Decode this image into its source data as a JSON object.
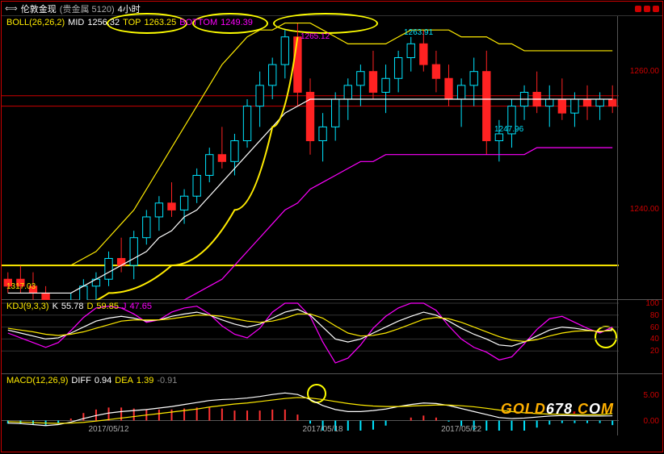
{
  "title": {
    "prefix": "⟺",
    "name": "伦敦金现",
    "group": "(贵金属 5120)",
    "tf": "4小时"
  },
  "main": {
    "indicator": {
      "name": "BOLL(26,26,2)",
      "mid_label": "MID",
      "mid_val": "1256.32",
      "top_label": "TOP",
      "top_val": "1263.25",
      "bot_label": "BOTTOM",
      "bot_val": "1249.39"
    },
    "val_labels": {
      "v1265": "1265.12",
      "v1263": "1263.91",
      "v1247": "1247.96",
      "v1317": "1317.03"
    },
    "colors": {
      "boll": "#ffeb00",
      "mid": "#ffffff",
      "top": "#ffeb00",
      "bot": "#ff00ff",
      "candle_up": "#00e5ff",
      "candle_dn": "#ff2222",
      "grid": "#555",
      "hline": "#c00"
    },
    "ylim": [
      1227,
      1268
    ],
    "yticks": [
      1240,
      1260
    ],
    "hlines": [
      1255,
      1256.5,
      1232
    ],
    "candles": [
      [
        0,
        1229,
        1231,
        1228,
        1230,
        -1
      ],
      [
        1,
        1230,
        1232,
        1228,
        1229,
        -1
      ],
      [
        2,
        1229,
        1231,
        1227,
        1228,
        -1
      ],
      [
        3,
        1228,
        1229,
        1224,
        1225,
        -1
      ],
      [
        4,
        1225,
        1227,
        1222,
        1223,
        -1
      ],
      [
        5,
        1223,
        1228,
        1222,
        1226,
        1
      ],
      [
        6,
        1226,
        1230,
        1225,
        1229,
        1
      ],
      [
        7,
        1229,
        1231,
        1227,
        1230,
        1
      ],
      [
        8,
        1230,
        1234,
        1229,
        1233,
        1
      ],
      [
        9,
        1233,
        1236,
        1231,
        1232,
        -1
      ],
      [
        10,
        1232,
        1237,
        1230,
        1236,
        1
      ],
      [
        11,
        1236,
        1240,
        1235,
        1239,
        1
      ],
      [
        12,
        1239,
        1242,
        1237,
        1241,
        1
      ],
      [
        13,
        1241,
        1244,
        1239,
        1240,
        -1
      ],
      [
        14,
        1240,
        1243,
        1238,
        1242,
        1
      ],
      [
        15,
        1242,
        1246,
        1241,
        1245,
        1
      ],
      [
        16,
        1245,
        1249,
        1244,
        1248,
        1
      ],
      [
        17,
        1248,
        1252,
        1246,
        1247,
        -1
      ],
      [
        18,
        1247,
        1251,
        1245,
        1250,
        1
      ],
      [
        19,
        1250,
        1256,
        1249,
        1255,
        1
      ],
      [
        20,
        1255,
        1260,
        1252,
        1258,
        1
      ],
      [
        21,
        1258,
        1262,
        1256,
        1261,
        1
      ],
      [
        22,
        1261,
        1266,
        1259,
        1265,
        1
      ],
      [
        23,
        1265,
        1267,
        1255,
        1257,
        -1
      ],
      [
        24,
        1257,
        1259,
        1248,
        1250,
        -1
      ],
      [
        25,
        1250,
        1254,
        1247,
        1252,
        1
      ],
      [
        26,
        1252,
        1257,
        1250,
        1256,
        1
      ],
      [
        27,
        1256,
        1259,
        1253,
        1258,
        1
      ],
      [
        28,
        1258,
        1261,
        1255,
        1260,
        1
      ],
      [
        29,
        1260,
        1263,
        1256,
        1257,
        -1
      ],
      [
        30,
        1257,
        1261,
        1254,
        1259,
        1
      ],
      [
        31,
        1259,
        1263,
        1257,
        1262,
        1
      ],
      [
        32,
        1262,
        1265,
        1260,
        1264,
        1
      ],
      [
        33,
        1264,
        1266,
        1260,
        1261,
        -1
      ],
      [
        34,
        1261,
        1263,
        1257,
        1259,
        -1
      ],
      [
        35,
        1259,
        1261,
        1255,
        1256,
        -1
      ],
      [
        36,
        1256,
        1259,
        1252,
        1258,
        1
      ],
      [
        37,
        1258,
        1262,
        1255,
        1260,
        1
      ],
      [
        38,
        1260,
        1263,
        1248,
        1250,
        -1
      ],
      [
        39,
        1250,
        1253,
        1247,
        1251,
        1
      ],
      [
        40,
        1251,
        1256,
        1249,
        1255,
        1
      ],
      [
        41,
        1255,
        1258,
        1253,
        1257,
        1
      ],
      [
        42,
        1257,
        1260,
        1254,
        1255,
        -1
      ],
      [
        43,
        1255,
        1258,
        1252,
        1256,
        1
      ],
      [
        44,
        1256,
        1259,
        1253,
        1254,
        -1
      ],
      [
        45,
        1254,
        1257,
        1252,
        1256,
        1
      ],
      [
        46,
        1256,
        1258,
        1253,
        1255,
        -1
      ],
      [
        47,
        1255,
        1257,
        1253,
        1256,
        1
      ],
      [
        48,
        1256,
        1258,
        1254,
        1255,
        -1
      ]
    ],
    "boll_mid": [
      1228,
      1228,
      1228,
      1228,
      1228,
      1228,
      1229,
      1230,
      1231,
      1232,
      1233,
      1234,
      1236,
      1237,
      1239,
      1240,
      1242,
      1244,
      1246,
      1248,
      1250,
      1252,
      1254,
      1255,
      1256,
      1256,
      1256,
      1256,
      1256,
      1256,
      1256,
      1256,
      1256,
      1256,
      1256,
      1256,
      1256,
      1256,
      1256,
      1256,
      1256,
      1256,
      1256,
      1256,
      1256,
      1256,
      1256,
      1256,
      1256
    ],
    "boll_top": [
      1232,
      1232,
      1232,
      1232,
      1232,
      1232,
      1233,
      1234,
      1236,
      1238,
      1240,
      1243,
      1246,
      1249,
      1252,
      1255,
      1258,
      1261,
      1263,
      1265,
      1266,
      1266,
      1267,
      1267,
      1267,
      1266,
      1265,
      1264,
      1264,
      1264,
      1264,
      1265,
      1266,
      1266,
      1266,
      1266,
      1265,
      1265,
      1265,
      1264,
      1264,
      1263,
      1263,
      1263,
      1263,
      1263,
      1263,
      1263,
      1263
    ],
    "boll_bot": [
      1224,
      1224,
      1224,
      1223,
      1223,
      1223,
      1223,
      1223,
      1224,
      1224,
      1224,
      1225,
      1225,
      1226,
      1227,
      1228,
      1229,
      1230,
      1232,
      1234,
      1236,
      1238,
      1240,
      1241,
      1243,
      1244,
      1245,
      1246,
      1247,
      1247,
      1248,
      1248,
      1248,
      1248,
      1248,
      1248,
      1248,
      1248,
      1248,
      1248,
      1248,
      1248,
      1249,
      1249,
      1249,
      1249,
      1249,
      1249,
      1249
    ],
    "yellow_curve": [
      [
        3,
        1225
      ],
      [
        8,
        1228
      ],
      [
        13,
        1232
      ],
      [
        18,
        1240
      ],
      [
        21,
        1252
      ],
      [
        23,
        1265
      ]
    ]
  },
  "kdj": {
    "hdr": {
      "name": "KDJ(9,3,3)",
      "k_label": "K",
      "k_val": "55.78",
      "d_label": "D",
      "d_val": "59.85",
      "j_label": "J",
      "j_val": "47.65"
    },
    "colors": {
      "k": "#ffffff",
      "d": "#ffeb00",
      "j": "#ff00ff"
    },
    "ylim": [
      0,
      100
    ],
    "yticks": [
      20,
      40,
      60,
      80,
      100
    ],
    "k": [
      55,
      50,
      45,
      40,
      42,
      50,
      60,
      70,
      75,
      78,
      75,
      70,
      72,
      78,
      82,
      85,
      80,
      72,
      65,
      60,
      65,
      75,
      85,
      90,
      80,
      60,
      40,
      35,
      40,
      50,
      60,
      70,
      78,
      85,
      80,
      70,
      58,
      48,
      40,
      30,
      28,
      35,
      45,
      55,
      60,
      58,
      55,
      52,
      56
    ],
    "d": [
      58,
      55,
      52,
      48,
      46,
      48,
      52,
      58,
      64,
      70,
      72,
      72,
      72,
      74,
      77,
      80,
      80,
      78,
      74,
      70,
      68,
      70,
      75,
      82,
      82,
      75,
      62,
      50,
      45,
      46,
      50,
      57,
      65,
      73,
      76,
      74,
      68,
      60,
      52,
      44,
      38,
      36,
      39,
      45,
      50,
      53,
      54,
      53,
      54
    ],
    "j": [
      50,
      42,
      34,
      26,
      34,
      54,
      76,
      92,
      95,
      92,
      82,
      68,
      72,
      85,
      92,
      95,
      82,
      62,
      48,
      42,
      58,
      85,
      100,
      100,
      78,
      35,
      0,
      8,
      30,
      58,
      78,
      92,
      100,
      100,
      88,
      62,
      40,
      26,
      18,
      5,
      10,
      32,
      56,
      74,
      78,
      68,
      58,
      50,
      60
    ]
  },
  "macd": {
    "hdr": {
      "name": "MACD(12,26,9)",
      "diff_label": "DIFF",
      "diff_val": "0.94",
      "dea_label": "DEA",
      "dea_val": "1.39",
      "bar_val": "-0.91"
    },
    "colors": {
      "diff": "#ffffff",
      "dea": "#ffeb00",
      "bar_up": "#ff3333",
      "bar_dn": "#00e5ff"
    },
    "ylim": [
      -2,
      7
    ],
    "yticks": [
      0,
      5
    ],
    "diff": [
      -0.5,
      -0.6,
      -0.8,
      -1,
      -0.8,
      -0.3,
      0.4,
      1,
      1.5,
      1.8,
      2,
      2.2,
      2.5,
      2.8,
      3.2,
      3.6,
      4,
      4.2,
      4.3,
      4.5,
      4.8,
      5.2,
      5.5,
      5.2,
      4.2,
      3,
      2.2,
      1.8,
      1.8,
      2,
      2.3,
      2.8,
      3.2,
      3.5,
      3.4,
      3,
      2.4,
      1.8,
      1.2,
      0.6,
      0.4,
      0.5,
      0.7,
      0.9,
      1,
      0.95,
      0.9,
      0.9,
      0.94
    ],
    "dea": [
      -0.2,
      -0.3,
      -0.4,
      -0.5,
      -0.55,
      -0.5,
      -0.35,
      -0.1,
      0.2,
      0.5,
      0.8,
      1.1,
      1.4,
      1.7,
      2,
      2.3,
      2.7,
      3,
      3.3,
      3.5,
      3.8,
      4.1,
      4.4,
      4.6,
      4.5,
      4.2,
      3.8,
      3.4,
      3.1,
      2.9,
      2.8,
      2.8,
      2.9,
      3,
      3.1,
      3.1,
      2.95,
      2.75,
      2.45,
      2.1,
      1.8,
      1.55,
      1.4,
      1.3,
      1.25,
      1.2,
      1.15,
      1.15,
      1.39
    ],
    "bars": [
      -0.6,
      -0.6,
      -0.8,
      -1,
      -0.5,
      0.4,
      1.5,
      2.2,
      2.6,
      2.6,
      2.4,
      2.2,
      2.2,
      2.2,
      2.4,
      2.6,
      2.6,
      2.4,
      2,
      2,
      2,
      2.2,
      2.2,
      1.2,
      -0.6,
      -2.4,
      -3.2,
      -3.2,
      -2.6,
      -1.8,
      -1,
      0,
      0.6,
      1,
      0.6,
      -0.2,
      -1.1,
      -1.9,
      -2.5,
      -3,
      -2.8,
      -2.1,
      -1.4,
      -0.8,
      -0.5,
      -0.5,
      -0.5,
      -0.5,
      -0.9
    ]
  },
  "x": {
    "ticks": [
      {
        "i": 8,
        "label": "2017/05/12"
      },
      {
        "i": 25,
        "label": "2017/05/18"
      },
      {
        "i": 36,
        "label": "2017/05/22"
      }
    ],
    "n": 49
  }
}
